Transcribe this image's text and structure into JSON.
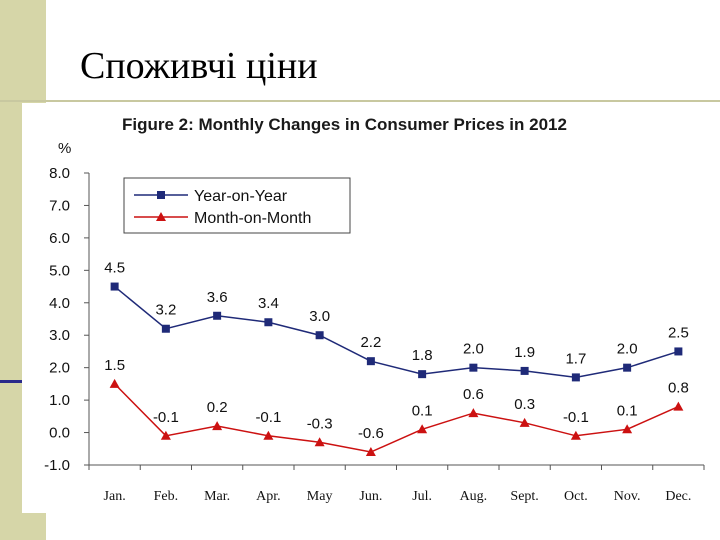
{
  "slide": {
    "title": "Споживчі ціни"
  },
  "colors": {
    "background": "#ffffff",
    "band": "#d6d6a8",
    "band_line": "#2a2a8a",
    "yoy": "#1f2a78",
    "mom": "#cc1111",
    "axis": "#555555"
  },
  "chart_data": {
    "type": "line",
    "title": "Figure 2: Monthly Changes in Consumer Prices in 2012",
    "ylabel": "%",
    "xlabel": "",
    "ylim": [
      -1.0,
      8.0
    ],
    "yticks": [
      "8.0",
      "7.0",
      "6.0",
      "5.0",
      "4.0",
      "3.0",
      "2.0",
      "1.0",
      "0.0",
      "-1.0"
    ],
    "ytick_values": [
      8,
      7,
      6,
      5,
      4,
      3,
      2,
      1,
      0,
      -1
    ],
    "categories": [
      "Jan.",
      "Feb.",
      "Mar.",
      "Apr.",
      "May",
      "Jun.",
      "Jul.",
      "Aug.",
      "Sept.",
      "Oct.",
      "Nov.",
      "Dec."
    ],
    "legend": [
      "Year-on-Year",
      "Month-on-Month"
    ],
    "legend_position": "top-left",
    "series": [
      {
        "name": "Year-on-Year",
        "marker": "square",
        "values": [
          4.5,
          3.2,
          3.6,
          3.4,
          3.0,
          2.2,
          1.8,
          2.0,
          1.9,
          1.7,
          2.0,
          2.5
        ],
        "labels": [
          "4.5",
          "3.2",
          "3.6",
          "3.4",
          "3.0",
          "2.2",
          "1.8",
          "2.0",
          "1.9",
          "1.7",
          "2.0",
          "2.5"
        ]
      },
      {
        "name": "Month-on-Month",
        "marker": "triangle",
        "values": [
          1.5,
          -0.1,
          0.2,
          -0.1,
          -0.3,
          -0.6,
          0.1,
          0.6,
          0.3,
          -0.1,
          0.1,
          0.8
        ],
        "labels": [
          "1.5",
          "-0.1",
          "0.2",
          "-0.1",
          "-0.3",
          "-0.6",
          "0.1",
          "0.6",
          "0.3",
          "-0.1",
          "0.1",
          "0.8"
        ]
      }
    ]
  }
}
